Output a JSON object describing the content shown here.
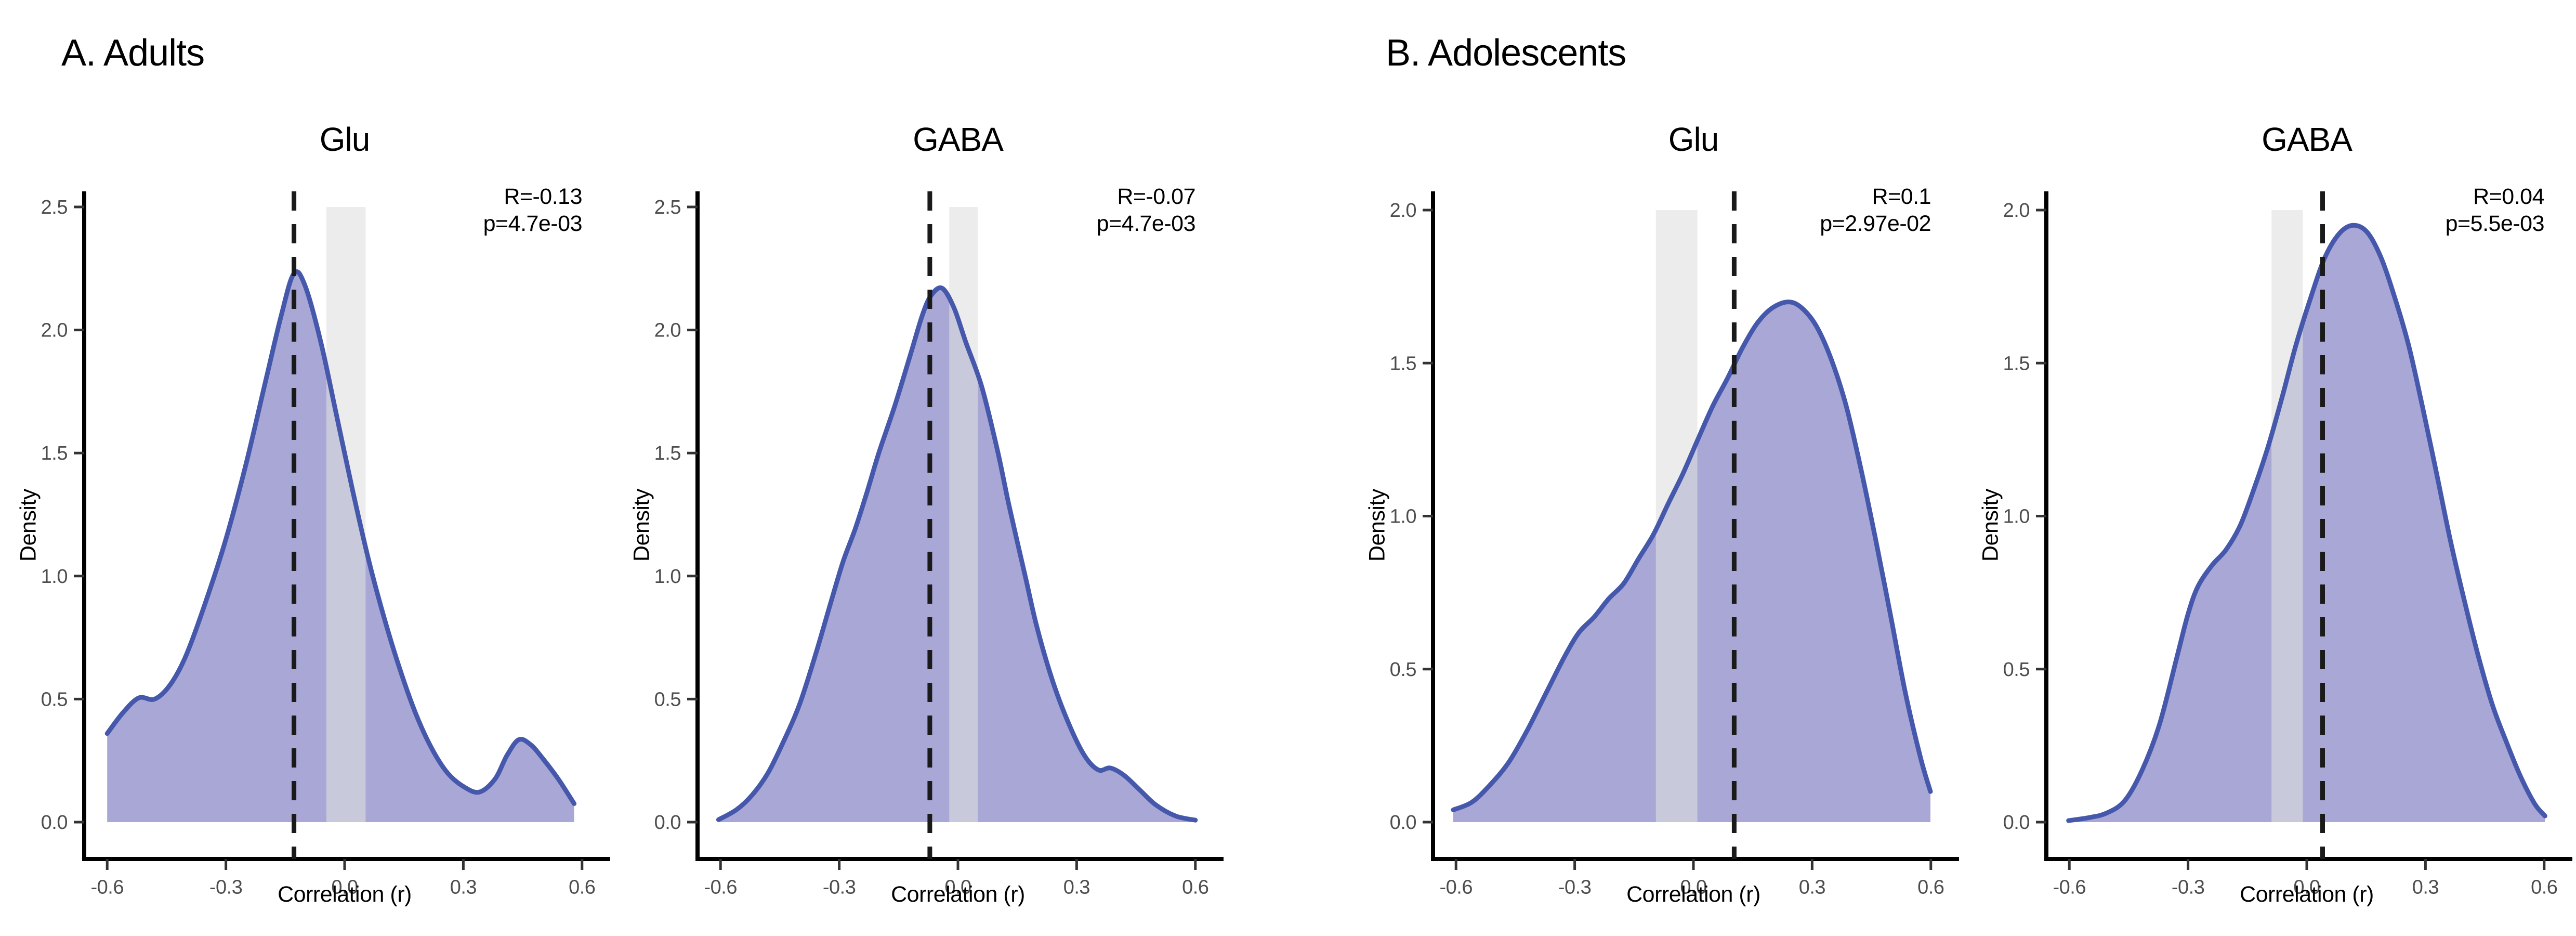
{
  "panels": [
    {
      "label": "A. Adults"
    },
    {
      "label": "B. Adolescents"
    }
  ],
  "colors": {
    "density_fill": "#a8a7d6",
    "density_line": "#4558ab",
    "null_band": "rgba(223,223,223,0.6)",
    "dashed_line": "#1a1a1a",
    "axis_line": "#000000",
    "tick_mark": "#333333",
    "tick_label": "#4d4d4d",
    "text": "#000000"
  },
  "chart_data": [
    {
      "type": "area",
      "panel": 0,
      "title": "Glu",
      "annotation": {
        "R": "R=-0.13",
        "p": "p=4.7e-03"
      },
      "xlabel": "Correlation (r)",
      "ylabel": "Density",
      "x_ticks": [
        "-0.6",
        "-0.3",
        "0.0",
        "0.3",
        "0.6"
      ],
      "y_ticks": [
        "0.0",
        "0.5",
        "1.0",
        "1.5",
        "2.0",
        "2.5"
      ],
      "xlim": [
        -0.66,
        0.66
      ],
      "ylim": [
        0,
        2.5
      ],
      "dashed_x": -0.128,
      "band": [
        -0.046,
        0.053
      ],
      "band_top": 2.5,
      "points": [
        [
          -0.6,
          0.36
        ],
        [
          -0.56,
          0.445
        ],
        [
          -0.52,
          0.505
        ],
        [
          -0.48,
          0.5
        ],
        [
          -0.44,
          0.56
        ],
        [
          -0.4,
          0.68
        ],
        [
          -0.35,
          0.9
        ],
        [
          -0.3,
          1.15
        ],
        [
          -0.25,
          1.45
        ],
        [
          -0.2,
          1.79
        ],
        [
          -0.16,
          2.06
        ],
        [
          -0.128,
          2.23
        ],
        [
          -0.1,
          2.18
        ],
        [
          -0.06,
          1.95
        ],
        [
          -0.02,
          1.65
        ],
        [
          0.02,
          1.35
        ],
        [
          0.06,
          1.07
        ],
        [
          0.1,
          0.83
        ],
        [
          0.14,
          0.62
        ],
        [
          0.18,
          0.44
        ],
        [
          0.22,
          0.3
        ],
        [
          0.26,
          0.2
        ],
        [
          0.3,
          0.145
        ],
        [
          0.34,
          0.122
        ],
        [
          0.38,
          0.175
        ],
        [
          0.41,
          0.27
        ],
        [
          0.44,
          0.335
        ],
        [
          0.47,
          0.315
        ],
        [
          0.5,
          0.26
        ],
        [
          0.54,
          0.175
        ],
        [
          0.58,
          0.075
        ]
      ]
    },
    {
      "type": "area",
      "panel": 0,
      "title": "GABA",
      "annotation": {
        "R": "R=-0.07",
        "p": "p=4.7e-03"
      },
      "xlabel": "Correlation (r)",
      "ylabel": "Density",
      "x_ticks": [
        "-0.6",
        "-0.3",
        "0.0",
        "0.3",
        "0.6"
      ],
      "y_ticks": [
        "0.0",
        "0.5",
        "1.0",
        "1.5",
        "2.0",
        "2.5"
      ],
      "xlim": [
        -0.66,
        0.66
      ],
      "ylim": [
        0,
        2.5
      ],
      "dashed_x": -0.071,
      "band": [
        -0.022,
        0.05
      ],
      "band_top": 2.5,
      "points": [
        [
          -0.605,
          0.01
        ],
        [
          -0.56,
          0.05
        ],
        [
          -0.52,
          0.11
        ],
        [
          -0.48,
          0.2
        ],
        [
          -0.44,
          0.33
        ],
        [
          -0.4,
          0.48
        ],
        [
          -0.36,
          0.68
        ],
        [
          -0.32,
          0.9
        ],
        [
          -0.29,
          1.06
        ],
        [
          -0.26,
          1.19
        ],
        [
          -0.23,
          1.34
        ],
        [
          -0.2,
          1.5
        ],
        [
          -0.16,
          1.69
        ],
        [
          -0.12,
          1.9
        ],
        [
          -0.09,
          2.06
        ],
        [
          -0.068,
          2.14
        ],
        [
          -0.04,
          2.17
        ],
        [
          -0.01,
          2.09
        ],
        [
          0.02,
          1.95
        ],
        [
          0.06,
          1.77
        ],
        [
          0.1,
          1.51
        ],
        [
          0.13,
          1.28
        ],
        [
          0.17,
          1.0
        ],
        [
          0.2,
          0.79
        ],
        [
          0.24,
          0.57
        ],
        [
          0.28,
          0.4
        ],
        [
          0.32,
          0.27
        ],
        [
          0.355,
          0.212
        ],
        [
          0.385,
          0.22
        ],
        [
          0.42,
          0.19
        ],
        [
          0.46,
          0.13
        ],
        [
          0.5,
          0.07
        ],
        [
          0.55,
          0.025
        ],
        [
          0.6,
          0.008
        ]
      ]
    },
    {
      "type": "area",
      "panel": 1,
      "title": "Glu",
      "annotation": {
        "R": "R=0.1",
        "p": "p=2.97e-02"
      },
      "xlabel": "Correlation (r)",
      "ylabel": "Density",
      "x_ticks": [
        "-0.6",
        "-0.3",
        "0.0",
        "0.3",
        "0.6"
      ],
      "y_ticks": [
        "0.0",
        "0.5",
        "1.0",
        "1.5",
        "2.0"
      ],
      "xlim": [
        -0.66,
        0.66
      ],
      "ylim": [
        0,
        2.0
      ],
      "dashed_x": 0.103,
      "band": [
        -0.095,
        0.01
      ],
      "band_top": 2.0,
      "points": [
        [
          -0.607,
          0.04
        ],
        [
          -0.56,
          0.065
        ],
        [
          -0.515,
          0.12
        ],
        [
          -0.467,
          0.195
        ],
        [
          -0.42,
          0.3
        ],
        [
          -0.373,
          0.42
        ],
        [
          -0.326,
          0.54
        ],
        [
          -0.289,
          0.62
        ],
        [
          -0.251,
          0.67
        ],
        [
          -0.214,
          0.73
        ],
        [
          -0.176,
          0.78
        ],
        [
          -0.139,
          0.86
        ],
        [
          -0.101,
          0.94
        ],
        [
          -0.064,
          1.04
        ],
        [
          -0.026,
          1.14
        ],
        [
          0.011,
          1.25
        ],
        [
          0.049,
          1.36
        ],
        [
          0.086,
          1.45
        ],
        [
          0.124,
          1.55
        ],
        [
          0.161,
          1.63
        ],
        [
          0.199,
          1.68
        ],
        [
          0.24,
          1.7
        ],
        [
          0.274,
          1.68
        ],
        [
          0.311,
          1.62
        ],
        [
          0.349,
          1.51
        ],
        [
          0.386,
          1.36
        ],
        [
          0.424,
          1.15
        ],
        [
          0.461,
          0.92
        ],
        [
          0.499,
          0.67
        ],
        [
          0.536,
          0.42
        ],
        [
          0.574,
          0.21
        ],
        [
          0.599,
          0.1
        ]
      ]
    },
    {
      "type": "area",
      "panel": 1,
      "title": "GABA",
      "annotation": {
        "R": "R=0.04",
        "p": "p=5.5e-03"
      },
      "xlabel": "Correlation (r)",
      "ylabel": "Density",
      "x_ticks": [
        "-0.6",
        "-0.3",
        "0.0",
        "0.3",
        "0.6"
      ],
      "y_ticks": [
        "0.0",
        "0.5",
        "1.0",
        "1.5",
        "2.0"
      ],
      "xlim": [
        -0.66,
        0.66
      ],
      "ylim": [
        0,
        2.0
      ],
      "dashed_x": 0.04,
      "band": [
        -0.089,
        -0.01
      ],
      "band_top": 2.0,
      "points": [
        [
          -0.602,
          0.005
        ],
        [
          -0.549,
          0.015
        ],
        [
          -0.505,
          0.03
        ],
        [
          -0.46,
          0.07
        ],
        [
          -0.416,
          0.17
        ],
        [
          -0.372,
          0.32
        ],
        [
          -0.328,
          0.54
        ],
        [
          -0.3,
          0.68
        ],
        [
          -0.275,
          0.77
        ],
        [
          -0.239,
          0.84
        ],
        [
          -0.204,
          0.89
        ],
        [
          -0.168,
          0.97
        ],
        [
          -0.133,
          1.09
        ],
        [
          -0.097,
          1.23
        ],
        [
          -0.062,
          1.39
        ],
        [
          -0.027,
          1.56
        ],
        [
          0.009,
          1.71
        ],
        [
          0.044,
          1.84
        ],
        [
          0.08,
          1.92
        ],
        [
          0.115,
          1.95
        ],
        [
          0.151,
          1.93
        ],
        [
          0.186,
          1.85
        ],
        [
          0.221,
          1.72
        ],
        [
          0.257,
          1.56
        ],
        [
          0.292,
          1.36
        ],
        [
          0.328,
          1.14
        ],
        [
          0.363,
          0.92
        ],
        [
          0.399,
          0.72
        ],
        [
          0.434,
          0.54
        ],
        [
          0.47,
          0.38
        ],
        [
          0.505,
          0.26
        ],
        [
          0.54,
          0.15
        ],
        [
          0.576,
          0.06
        ],
        [
          0.602,
          0.02
        ]
      ]
    }
  ]
}
